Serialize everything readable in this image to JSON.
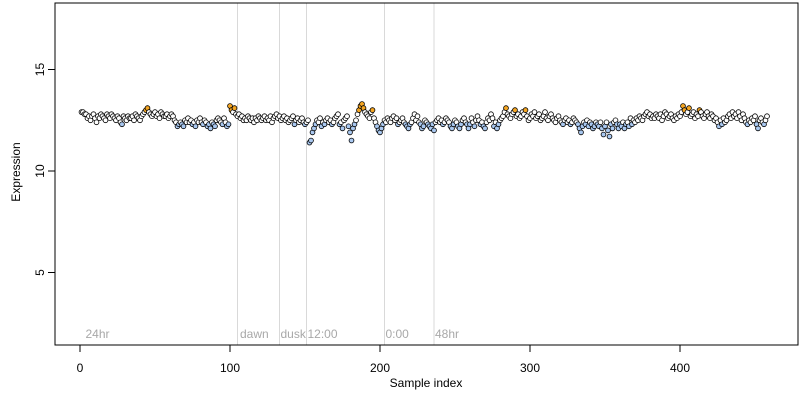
{
  "chart_data": {
    "type": "scatter",
    "title": "",
    "xlabel": "Sample index",
    "ylabel": "Expression",
    "xlim": [
      0,
      460
    ],
    "ylim": [
      2,
      18
    ],
    "x_ticks": [
      0,
      100,
      200,
      300,
      400
    ],
    "y_ticks": [
      5,
      10,
      15
    ],
    "grid": false,
    "colors": {
      "low": "#a9c8f0",
      "mid": "#ffffff",
      "high": "#f5a623",
      "outline": "#000000",
      "vline": "#d9d9d9",
      "annotation": "#a8a8a8"
    },
    "vertical_lines": [
      105,
      133,
      151,
      203,
      236
    ],
    "annotations": [
      {
        "x": 3,
        "text": "24hr"
      },
      {
        "x": 106,
        "text": "dawn"
      },
      {
        "x": 133,
        "text": "dusk"
      },
      {
        "x": 151,
        "text": "12:00"
      },
      {
        "x": 203,
        "text": "0:00"
      },
      {
        "x": 236,
        "text": "48hr"
      }
    ],
    "series": [
      {
        "x_start": 1,
        "y": [
          12.9,
          12.9,
          12.8,
          12.8,
          12.6,
          12.7,
          12.5,
          12.7,
          12.8,
          12.6,
          12.4,
          12.7,
          12.6,
          12.8,
          12.7,
          12.6,
          12.5,
          12.8,
          12.7,
          12.6,
          12.8,
          12.7,
          12.6,
          12.5,
          12.7,
          12.6,
          12.4,
          12.3,
          12.7,
          12.6,
          12.5,
          12.7,
          12.6,
          12.6,
          12.7,
          12.5,
          12.8,
          12.7,
          12.6,
          12.5,
          12.7,
          12.8,
          12.9,
          13.0,
          13.1,
          12.9,
          12.8,
          12.7,
          12.8,
          12.9,
          12.7,
          12.8,
          12.6,
          12.9,
          12.8,
          12.7,
          12.7,
          12.8,
          12.6,
          12.7,
          12.8,
          12.7,
          12.5,
          12.4,
          12.2,
          12.3,
          12.4,
          12.3,
          12.2,
          12.5,
          12.4,
          12.6,
          12.4,
          12.5,
          12.3,
          12.4,
          12.2,
          12.5,
          12.4,
          12.6,
          12.4,
          12.3,
          12.5,
          12.4,
          12.2,
          12.3,
          12.1,
          12.4,
          12.3,
          12.2,
          12.5,
          12.6,
          12.5,
          12.4,
          12.3,
          12.6,
          12.4,
          12.2,
          12.3,
          13.2,
          13.0,
          12.9,
          13.1,
          12.8,
          12.7,
          12.8,
          12.6,
          12.7,
          12.5,
          12.6,
          12.5,
          12.7,
          12.6,
          12.5,
          12.6,
          12.4,
          12.6,
          12.5,
          12.7,
          12.6,
          12.5,
          12.6,
          12.7,
          12.5,
          12.6,
          12.5,
          12.7,
          12.4,
          12.6,
          12.7,
          12.8,
          12.6,
          12.7,
          12.5,
          12.6,
          12.7,
          12.5,
          12.6,
          12.4,
          12.5,
          12.6,
          12.7,
          12.3,
          12.5,
          12.6,
          12.4,
          12.5,
          12.6,
          12.4,
          12.3,
          12.4,
          12.5,
          11.4,
          11.5,
          11.9,
          12.1,
          12.3,
          12.5,
          12.4,
          12.6,
          12.2,
          12.4,
          12.3,
          12.5,
          12.6,
          12.4,
          12.5,
          12.3,
          12.4,
          12.6,
          12.7,
          12.8,
          12.3,
          12.4,
          12.1,
          12.5,
          12.6,
          12.7,
          12.2,
          11.9,
          11.5,
          12.1,
          12.3,
          12.5,
          12.8,
          13.0,
          13.2,
          13.3,
          13.1,
          12.9,
          12.8,
          12.7,
          12.6,
          12.9,
          13.0,
          12.6,
          12.4,
          12.2,
          12.0,
          11.9,
          12.1,
          12.3,
          12.5,
          12.4,
          12.6,
          12.5,
          12.4,
          12.6,
          12.7,
          12.5,
          12.6,
          12.3,
          12.4,
          12.5,
          12.6,
          12.4,
          12.3,
          12.2,
          12.1,
          12.3,
          12.4,
          12.6,
          12.8,
          12.5,
          12.7,
          12.4,
          12.3,
          12.1,
          12.2,
          12.5,
          12.4,
          12.3,
          12.2,
          12.1,
          12.3,
          12.0,
          12.4,
          12.5,
          12.6,
          12.4,
          12.5,
          12.3,
          12.4,
          12.6,
          12.5,
          12.4,
          12.2,
          12.1,
          12.3,
          12.5,
          12.4,
          12.2,
          12.1,
          12.3,
          12.5,
          12.6,
          12.4,
          12.3,
          12.1,
          12.3,
          12.6,
          12.4,
          12.2,
          12.5,
          12.7,
          12.5,
          12.3,
          12.4,
          12.2,
          12.1,
          12.4,
          12.6,
          12.5,
          12.8,
          12.6,
          12.2,
          12.4,
          12.1,
          12.3,
          12.5,
          12.6,
          12.7,
          12.9,
          13.1,
          12.8,
          12.7,
          12.6,
          12.8,
          12.9,
          13.0,
          12.7,
          12.8,
          12.6,
          12.7,
          12.9,
          12.8,
          13.0,
          12.7,
          12.5,
          12.6,
          12.8,
          12.7,
          12.9,
          12.6,
          12.7,
          12.8,
          12.5,
          12.6,
          12.7,
          12.9,
          12.6,
          12.5,
          12.7,
          12.8,
          12.6,
          12.5,
          12.4,
          12.6,
          12.7,
          12.5,
          12.4,
          12.3,
          12.5,
          12.6,
          12.4,
          12.5,
          12.3,
          12.4,
          12.6,
          12.5,
          12.4,
          12.3,
          12.1,
          11.9,
          12.2,
          12.4,
          12.3,
          12.5,
          12.2,
          12.4,
          12.3,
          12.1,
          12.2,
          12.4,
          12.3,
          12.2,
          12.4,
          12.1,
          11.8,
          12.2,
          12.4,
          12.0,
          11.7,
          12.3,
          12.1,
          12.4,
          12.5,
          12.3,
          12.1,
          12.3,
          12.2,
          12.4,
          12.1,
          12.3,
          12.4,
          12.2,
          12.6,
          12.3,
          12.5,
          12.4,
          12.6,
          12.5,
          12.7,
          12.6,
          12.5,
          12.7,
          12.8,
          12.9,
          12.7,
          12.8,
          12.6,
          12.7,
          12.6,
          12.8,
          12.7,
          12.6,
          12.8,
          12.5,
          12.7,
          12.9,
          12.8,
          12.6,
          12.7,
          12.8,
          12.6,
          12.5,
          12.7,
          12.6,
          12.8,
          12.7,
          12.9,
          13.2,
          13.0,
          12.8,
          12.9,
          13.1,
          12.7,
          12.8,
          12.9,
          12.6,
          12.8,
          12.7,
          13.0,
          12.9,
          12.7,
          12.6,
          12.8,
          12.9,
          12.7,
          12.6,
          12.8,
          12.7,
          12.5,
          12.6,
          12.4,
          12.2,
          12.5,
          12.3,
          12.6,
          12.4,
          12.5,
          12.7,
          12.8,
          12.6,
          12.9,
          12.7,
          12.8,
          12.6,
          12.9,
          12.7,
          12.5,
          12.8,
          12.6,
          12.4,
          12.3,
          12.5,
          12.4,
          12.6,
          12.5,
          12.7,
          12.3,
          12.1,
          12.5,
          12.6,
          12.4,
          12.3,
          12.5,
          12.7
        ]
      }
    ]
  }
}
